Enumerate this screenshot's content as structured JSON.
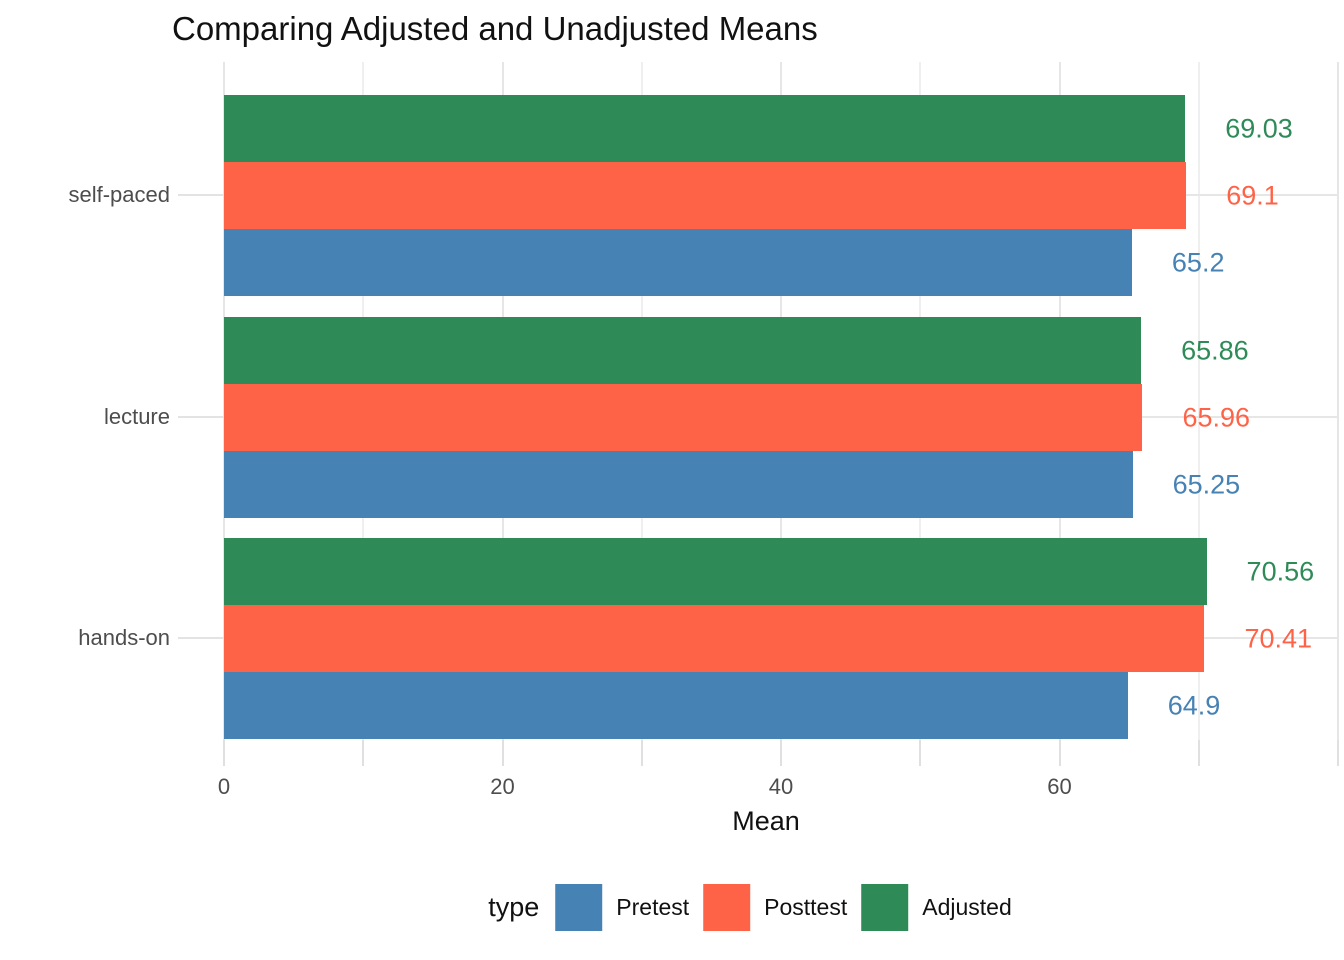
{
  "title": "Comparing Adjusted and Unadjusted Means",
  "chart_data": {
    "type": "bar",
    "orientation": "horizontal",
    "title": "Comparing Adjusted and Unadjusted Means",
    "xlabel": "Mean",
    "ylabel": "",
    "categories": [
      "self-paced",
      "lecture",
      "hands-on"
    ],
    "series": [
      {
        "name": "Pretest",
        "color": "#4682B4",
        "values": [
          65.2,
          65.25,
          64.9
        ],
        "labels": [
          "65.2",
          "65.25",
          "64.9"
        ]
      },
      {
        "name": "Posttest",
        "color": "#FF6347",
        "values": [
          69.1,
          65.96,
          70.41
        ],
        "labels": [
          "69.1",
          "65.96",
          "70.41"
        ]
      },
      {
        "name": "Adjusted",
        "color": "#2E8B57",
        "values": [
          69.03,
          65.86,
          70.56
        ],
        "labels": [
          "69.03",
          "65.86",
          "70.56"
        ]
      }
    ],
    "bar_order_top_to_bottom": [
      "Adjusted",
      "Posttest",
      "Pretest"
    ],
    "xlim": [
      0,
      80
    ],
    "x_major_ticks": [
      0,
      20,
      40,
      60
    ],
    "x_tick_labels": [
      "0",
      "20",
      "40",
      "60"
    ],
    "x_gridlines_major": [
      0,
      20,
      40,
      60,
      80
    ],
    "x_gridlines_minor": [
      10,
      30,
      50,
      70
    ],
    "grid": true,
    "panel_background": "#ffffff",
    "legend_position": "bottom",
    "legend_title": "type"
  },
  "legend": {
    "title": "type",
    "items": [
      {
        "label": "Pretest",
        "color": "#4682B4"
      },
      {
        "label": "Posttest",
        "color": "#FF6347"
      },
      {
        "label": "Adjusted",
        "color": "#2E8B57"
      }
    ]
  },
  "colors": {
    "pretest": "#4682B4",
    "posttest": "#FF6347",
    "adjusted": "#2E8B57",
    "grid_major": "#e6e6e6",
    "grid_minor": "#efefef",
    "axis_text": "#4d4d4d",
    "text": "#111111"
  }
}
